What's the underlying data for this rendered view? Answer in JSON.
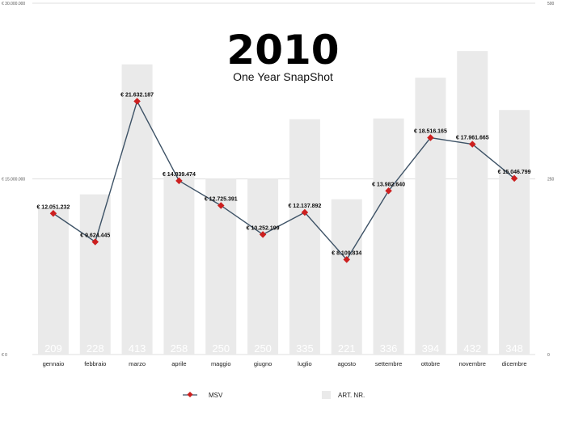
{
  "chart_data": {
    "type": "bar+line",
    "title": "2010",
    "subtitle": "One Year SnapShot",
    "categories": [
      "gennaio",
      "febbraio",
      "marzo",
      "aprile",
      "maggio",
      "giugno",
      "luglio",
      "agosto",
      "settembre",
      "ottobre",
      "novembre",
      "dicembre"
    ],
    "series": [
      {
        "name": "MSV",
        "type": "line",
        "axis": "left",
        "values": [
          12051232,
          9624445,
          21632187,
          14839474,
          12725391,
          10252199,
          12137892,
          8109834,
          13982640,
          18516165,
          17961665,
          15046799
        ],
        "labels": [
          "€ 12.051.232",
          "€ 9.624.445",
          "€ 21.632.187",
          "€ 14.839.474",
          "€ 12.725.391",
          "€ 10.252.199",
          "€ 12.137.892",
          "€ 8.109.834",
          "€ 13.982.640",
          "€ 18.516.165",
          "€ 17.961.665",
          "€ 15.046.799"
        ],
        "color": "#cc1f1f",
        "line_color": "#3d5266"
      },
      {
        "name": "ART. NR.",
        "type": "bar",
        "axis": "right",
        "values": [
          209,
          228,
          413,
          258,
          250,
          250,
          335,
          221,
          336,
          394,
          432,
          348
        ],
        "labels": [
          "209",
          "228",
          "413",
          "258",
          "250",
          "250",
          "335",
          "221",
          "336",
          "394",
          "432",
          "348"
        ],
        "color": "#eaeaea"
      }
    ],
    "left_axis": {
      "range": [
        0,
        30000000
      ],
      "ticks": [
        "€ 0",
        "€ 15.000.000",
        "€ 30.000.000"
      ],
      "tick_values": [
        0,
        15000000,
        30000000
      ]
    },
    "right_axis": {
      "range": [
        0,
        500
      ],
      "ticks": [
        "0",
        "250",
        "500"
      ],
      "tick_values": [
        0,
        250,
        500
      ]
    },
    "grid": true,
    "legend": {
      "position": "bottom",
      "entries": [
        "MSV",
        "ART. NR."
      ]
    }
  }
}
